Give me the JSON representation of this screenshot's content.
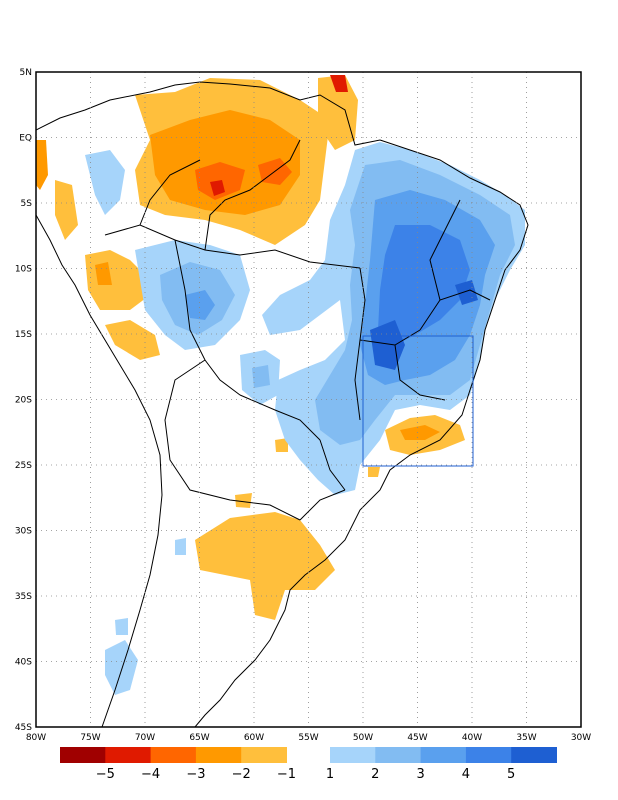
{
  "map": {
    "lat_ticks": [
      "5N",
      "EQ",
      "5S",
      "10S",
      "15S",
      "20S",
      "25S",
      "30S",
      "35S",
      "40S",
      "45S"
    ],
    "lon_ticks": [
      "80W",
      "75W",
      "70W",
      "65W",
      "60W",
      "55W",
      "50W",
      "45W",
      "40W",
      "35W",
      "30W"
    ],
    "extent": {
      "lon_min": -80,
      "lon_max": -30,
      "lat_min": -45,
      "lat_max": 5
    },
    "grid": "dotted",
    "box_region": {
      "lon_min": -49,
      "lon_max": -40,
      "lat_min": -25,
      "lat_max": -15,
      "color": "#1f5fd0"
    }
  },
  "colorbar": {
    "negative_labels": [
      "−5",
      "−4",
      "−3",
      "−2",
      "−1"
    ],
    "positive_labels": [
      "1",
      "2",
      "3",
      "4",
      "5"
    ],
    "negative_colors": [
      "#a00000",
      "#e01a00",
      "#ff6600",
      "#ff9900",
      "#ffbf3c"
    ],
    "positive_colors": [
      "#a6d4fa",
      "#82bcf2",
      "#5aa0ee",
      "#3c82e8",
      "#1e5fd2"
    ]
  }
}
